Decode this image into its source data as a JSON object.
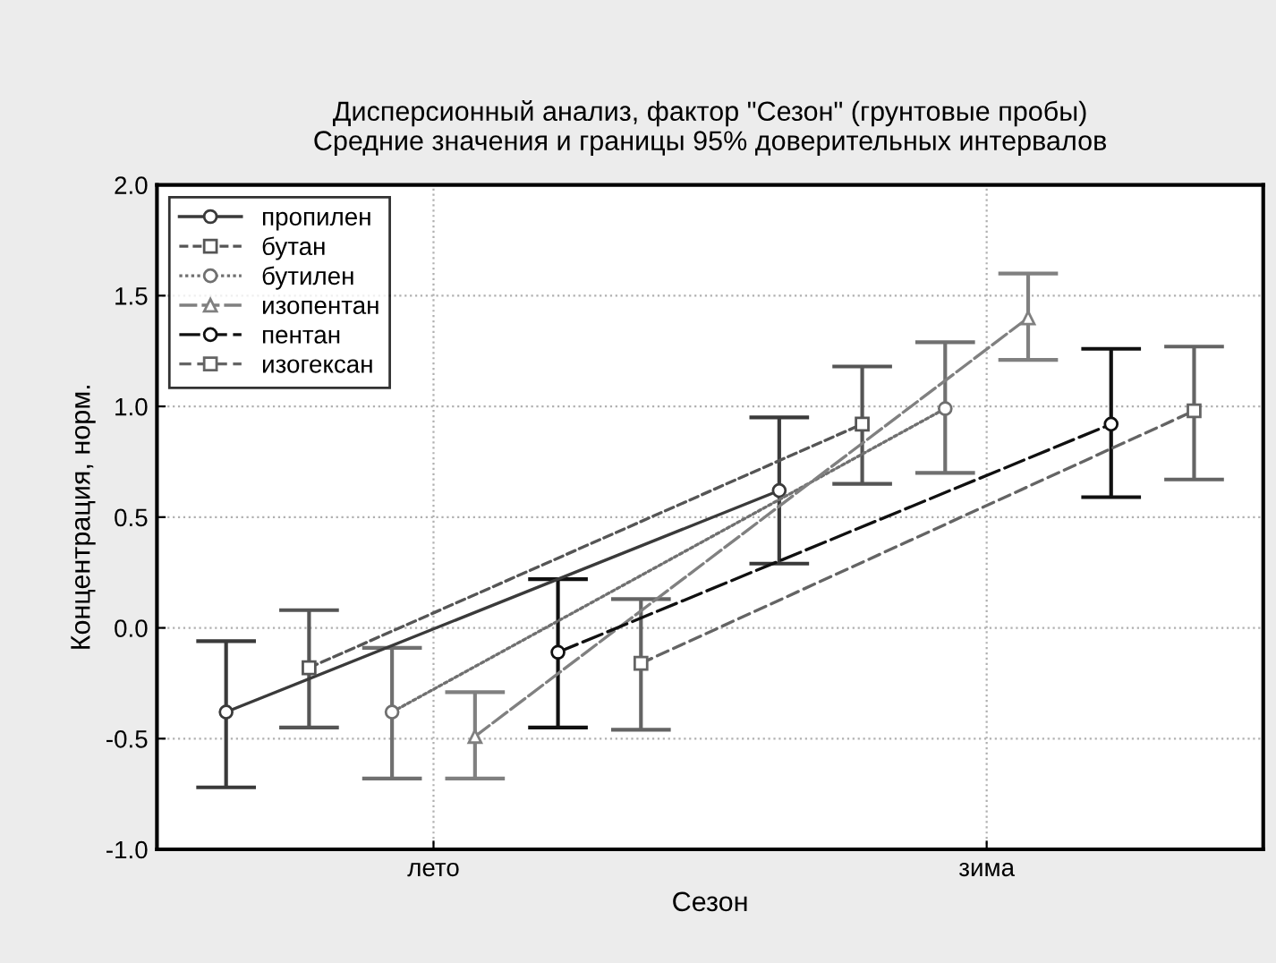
{
  "chart_data": {
    "type": "line",
    "title": "Дисперсионный анализ, фактор \"Сезон\" (грунтовые пробы)\nСредние значения и границы 95% доверительных интервалов",
    "xlabel": "Сезон",
    "ylabel": "Концентрация, норм.",
    "categories": [
      "лето",
      "зима"
    ],
    "ylim": [
      -1.0,
      2.0
    ],
    "yticks": [
      {
        "value": -1.0,
        "label": "-1.0"
      },
      {
        "value": -0.5,
        "label": "-0.5"
      },
      {
        "value": 0.0,
        "label": "0.0"
      },
      {
        "value": 0.5,
        "label": "0.5"
      },
      {
        "value": 1.0,
        "label": "1.0"
      },
      {
        "value": 1.5,
        "label": "1.5"
      },
      {
        "value": 2.0,
        "label": "2.0"
      }
    ],
    "grid": true,
    "legend": "top left",
    "series": [
      {
        "name": "пропилен",
        "color": "#3a3a3a",
        "marker": "circle",
        "line_style": "solid",
        "values": [
          -0.38,
          0.62
        ],
        "errors": [
          [
            -0.72,
            -0.06
          ],
          [
            0.29,
            0.95
          ]
        ]
      },
      {
        "name": "бутан",
        "color": "#555555",
        "marker": "square",
        "line_style": "dashed",
        "values": [
          -0.18,
          0.92
        ],
        "errors": [
          [
            -0.45,
            0.08
          ],
          [
            0.65,
            1.18
          ]
        ]
      },
      {
        "name": "бутилен",
        "color": "#707070",
        "marker": "circle",
        "line_style": "dotted",
        "values": [
          -0.38,
          0.99
        ],
        "errors": [
          [
            -0.68,
            -0.09
          ],
          [
            0.7,
            1.29
          ]
        ]
      },
      {
        "name": "изопентан",
        "color": "#808080",
        "marker": "triangle",
        "line_style": "dashed",
        "values": [
          -0.49,
          1.4
        ],
        "errors": [
          [
            -0.68,
            -0.29
          ],
          [
            1.21,
            1.6
          ]
        ]
      },
      {
        "name": "пентан",
        "color": "#101010",
        "marker": "circle",
        "line_style": "dashed",
        "values": [
          -0.11,
          0.92
        ],
        "errors": [
          [
            -0.45,
            0.22
          ],
          [
            0.59,
            1.26
          ]
        ]
      },
      {
        "name": "изогексан",
        "color": "#646464",
        "marker": "square",
        "line_style": "dashed",
        "values": [
          -0.16,
          0.98
        ],
        "errors": [
          [
            -0.46,
            0.13
          ],
          [
            0.67,
            1.27
          ]
        ]
      }
    ]
  }
}
